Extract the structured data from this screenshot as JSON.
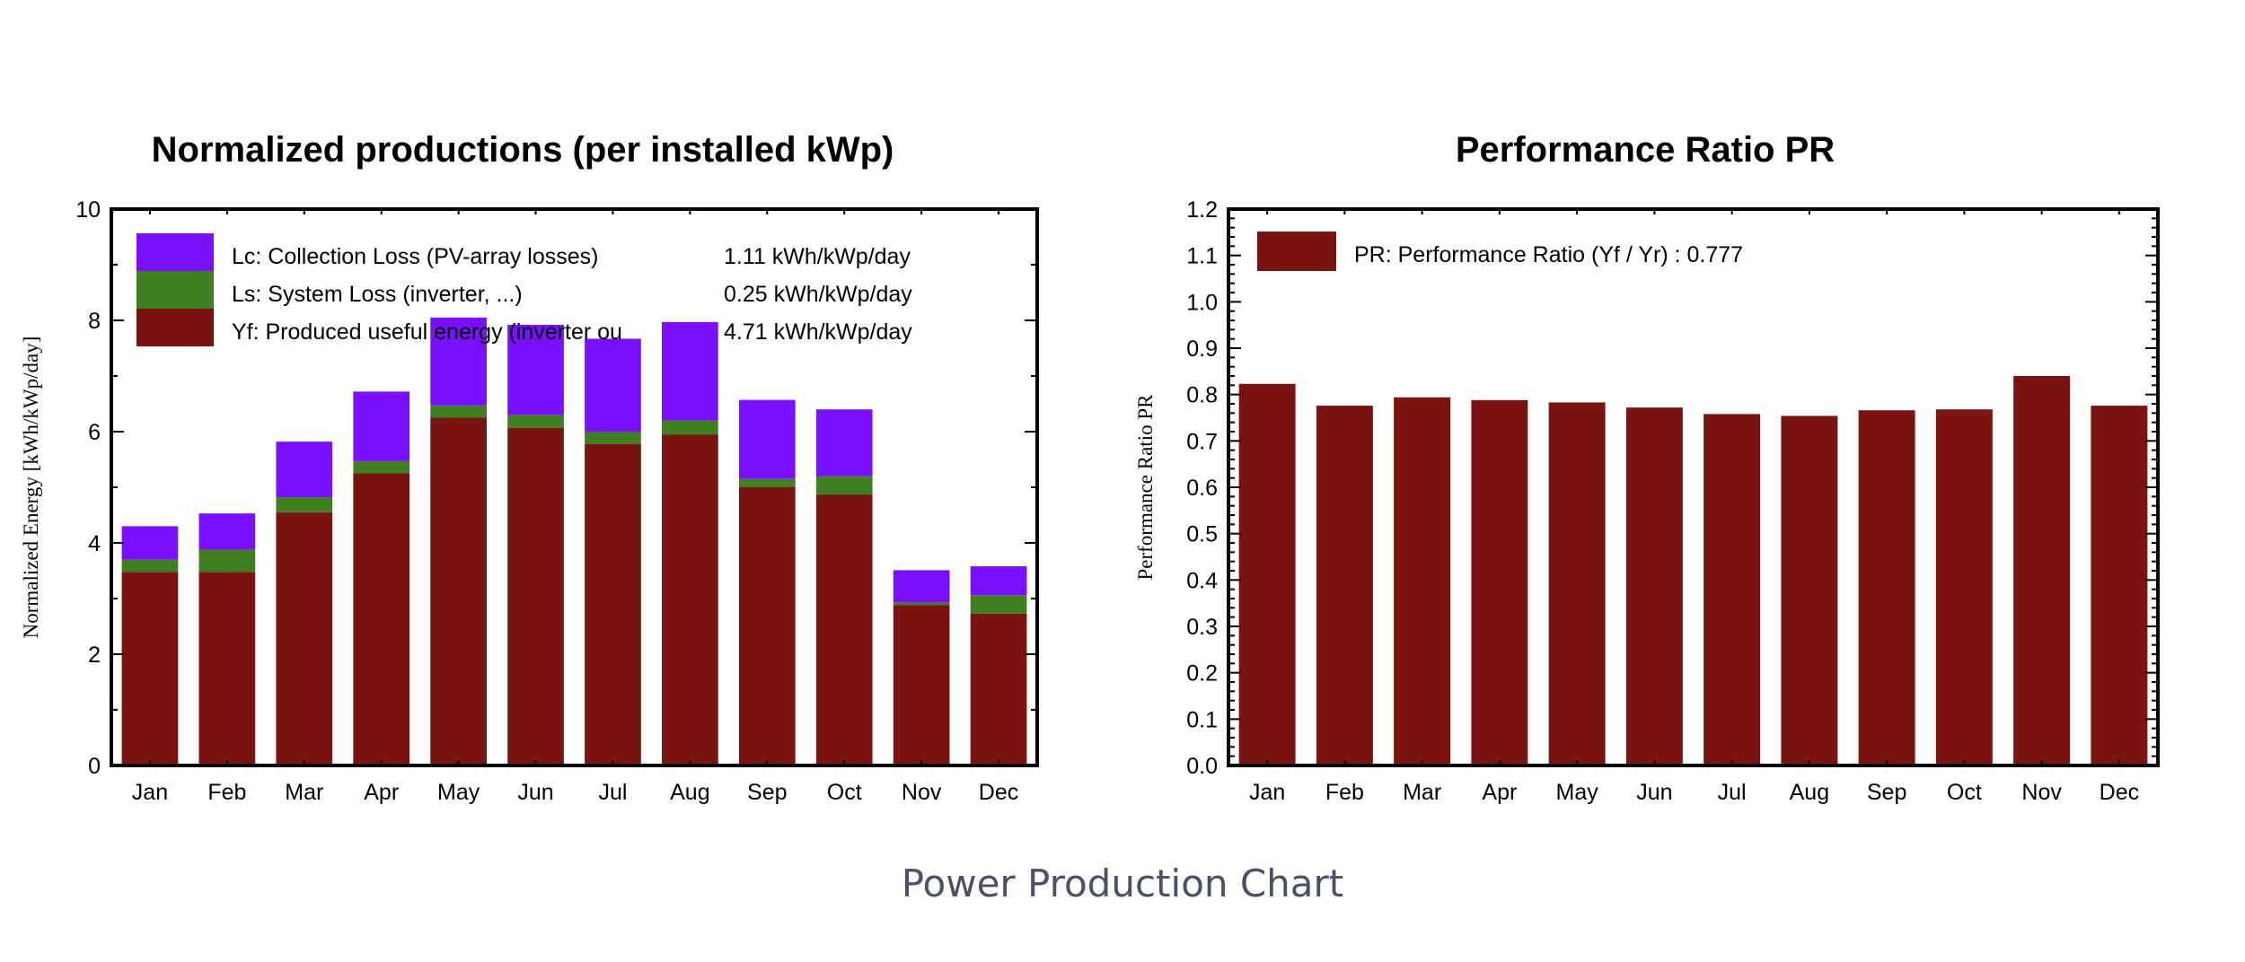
{
  "caption": "Power Production Chart",
  "colors": {
    "lc": "#7a10ff",
    "ls": "#3f7f22",
    "yf": "#7a1410",
    "pr": "#7a1410"
  },
  "chart_data": [
    {
      "type": "bar",
      "stacked": true,
      "title": "Normalized productions (per installed kWp)",
      "xlabel": "",
      "ylabel": "Normalized Energy [kWh/kWp/day]",
      "ylim": [
        0,
        10
      ],
      "yticks": [
        "0",
        "2",
        "4",
        "6",
        "8",
        "10"
      ],
      "grid": false,
      "legend_position": "top-left",
      "categories": [
        "Jan",
        "Feb",
        "Mar",
        "Apr",
        "May",
        "Jun",
        "Jul",
        "Aug",
        "Sep",
        "Oct",
        "Nov",
        "Dec"
      ],
      "series": [
        {
          "name": "Yf: Produced useful energy (inverter output)",
          "legend_label": "Yf: Produced useful energy (inverter ou",
          "legend_value": "4.71 kWh/kWp/day",
          "color_key": "yf",
          "values": [
            3.48,
            3.48,
            4.55,
            5.25,
            6.25,
            6.07,
            5.78,
            5.95,
            5.0,
            4.87,
            2.88,
            2.73
          ]
        },
        {
          "name": "Ls: System Loss  (inverter, ...)",
          "legend_label": "Ls: System Loss  (inverter, ...)",
          "legend_value": "0.25 kWh/kWp/day",
          "color_key": "ls",
          "values": [
            0.22,
            0.4,
            0.27,
            0.22,
            0.22,
            0.23,
            0.22,
            0.25,
            0.15,
            0.33,
            0.05,
            0.33
          ]
        },
        {
          "name": "Lc: Collection Loss (PV-array losses)",
          "legend_label": "Lc: Collection Loss (PV-array losses)",
          "legend_value": "1.11 kWh/kWp/day",
          "color_key": "lc",
          "values": [
            0.6,
            0.65,
            1.0,
            1.25,
            1.58,
            1.62,
            1.67,
            1.77,
            1.42,
            1.2,
            0.58,
            0.52
          ]
        }
      ]
    },
    {
      "type": "bar",
      "title": "Performance Ratio PR",
      "xlabel": "",
      "ylabel": "Performance Ratio PR",
      "ylim": [
        0,
        1.2
      ],
      "yticks": [
        "0.0",
        "0.1",
        "0.2",
        "0.3",
        "0.4",
        "0.5",
        "0.6",
        "0.7",
        "0.8",
        "0.9",
        "1.0",
        "1.1",
        "1.2"
      ],
      "grid": false,
      "legend_position": "top-left",
      "categories": [
        "Jan",
        "Feb",
        "Mar",
        "Apr",
        "May",
        "Jun",
        "Jul",
        "Aug",
        "Sep",
        "Oct",
        "Nov",
        "Dec"
      ],
      "series": [
        {
          "name": "PR: Performance Ratio (Yf / Yr) :  0.777",
          "legend_label": "PR: Performance Ratio (Yf / Yr) :  0.777",
          "color_key": "pr",
          "values": [
            0.823,
            0.776,
            0.794,
            0.788,
            0.783,
            0.772,
            0.758,
            0.754,
            0.766,
            0.768,
            0.84,
            0.776
          ]
        }
      ]
    }
  ]
}
